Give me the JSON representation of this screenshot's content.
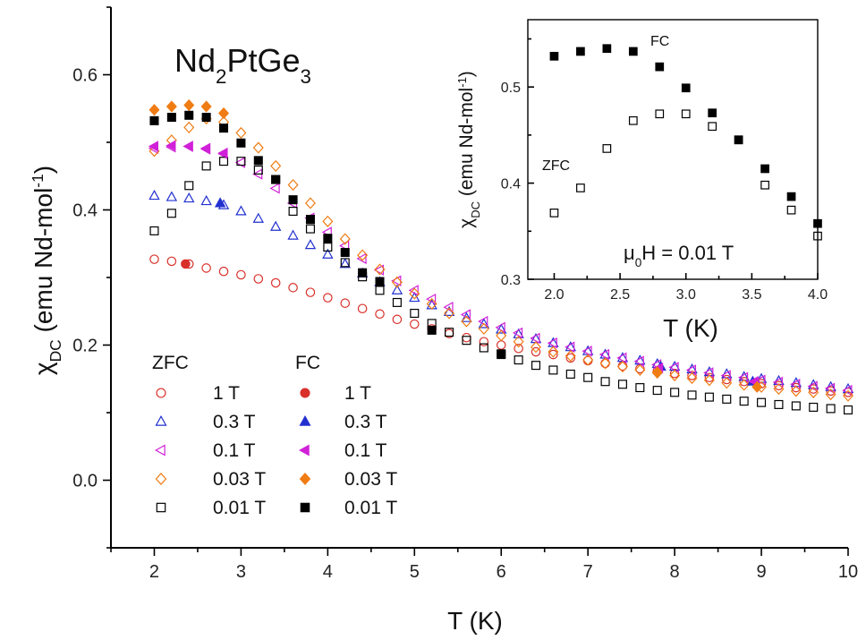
{
  "chart_data": [
    {
      "type": "scatter",
      "title_parts": [
        "Nd",
        "2",
        "PtGe",
        "3"
      ],
      "xlabel": "T (K)",
      "ylabel_parts": [
        "χ",
        "DC",
        " (emu Nd-mol",
        "-1",
        ")"
      ],
      "xlim": [
        1.5,
        10
      ],
      "ylim": [
        -0.1,
        0.7
      ],
      "xticks": [
        "2",
        "3",
        "4",
        "5",
        "6",
        "7",
        "8",
        "9",
        "10"
      ],
      "yticks": [
        "0.0",
        "0.2",
        "0.4",
        "0.6"
      ],
      "legend": {
        "placement": "lower-left",
        "group_titles": [
          "ZFC",
          "FC"
        ],
        "entries": [
          {
            "label": "1 T",
            "color": "#d9302a",
            "marker": "circle"
          },
          {
            "label": "0.3 T",
            "color": "#2230d0",
            "marker": "triangle-up"
          },
          {
            "label": "0.1 T",
            "color": "#d020d8",
            "marker": "triangle-left"
          },
          {
            "label": "0.03 T",
            "color": "#f07c14",
            "marker": "diamond"
          },
          {
            "label": "0.01 T",
            "color": "#000000",
            "marker": "square"
          }
        ]
      },
      "series": [
        {
          "name": "ZFC 1 T",
          "field": "1 T",
          "mode": "ZFC",
          "color": "#d9302a",
          "marker": "circle",
          "filled": false,
          "x": [
            2.0,
            2.2,
            2.4,
            2.6,
            2.8,
            3.0,
            3.2,
            3.4,
            3.6,
            3.8,
            4.0,
            4.2,
            4.4,
            4.6,
            4.8,
            5.0,
            5.2,
            5.4,
            5.6,
            5.8,
            6.0,
            6.2,
            6.4,
            6.6,
            6.8,
            7.0,
            7.2,
            7.4,
            7.6,
            7.8,
            8.0,
            8.2,
            8.4,
            8.6,
            8.8,
            9.0,
            9.2,
            9.4,
            9.6,
            9.8,
            10.0
          ],
          "y": [
            0.327,
            0.324,
            0.32,
            0.314,
            0.309,
            0.304,
            0.298,
            0.292,
            0.285,
            0.278,
            0.27,
            0.262,
            0.254,
            0.246,
            0.238,
            0.231,
            0.224,
            0.217,
            0.211,
            0.205,
            0.2,
            0.195,
            0.19,
            0.186,
            0.181,
            0.177,
            0.173,
            0.169,
            0.165,
            0.162,
            0.158,
            0.155,
            0.152,
            0.149,
            0.146,
            0.143,
            0.14,
            0.137,
            0.135,
            0.132,
            0.13
          ]
        },
        {
          "name": "ZFC 0.3 T",
          "field": "0.3 T",
          "mode": "ZFC",
          "color": "#2230d0",
          "marker": "triangle-up",
          "filled": false,
          "x": [
            2.0,
            2.2,
            2.4,
            2.6,
            2.8,
            3.0,
            3.2,
            3.4,
            3.6,
            3.8,
            4.0,
            4.2,
            4.4,
            4.6,
            4.8,
            5.0,
            5.2,
            5.4,
            5.6,
            5.8,
            6.0,
            6.2,
            6.4,
            6.6,
            6.8,
            7.0,
            7.2,
            7.4,
            7.6,
            7.8,
            8.0,
            8.2,
            8.4,
            8.6,
            8.8,
            9.0,
            9.2,
            9.4,
            9.6,
            9.8,
            10.0
          ],
          "y": [
            0.421,
            0.419,
            0.417,
            0.413,
            0.407,
            0.398,
            0.387,
            0.375,
            0.362,
            0.348,
            0.334,
            0.32,
            0.306,
            0.293,
            0.281,
            0.27,
            0.259,
            0.249,
            0.24,
            0.231,
            0.223,
            0.216,
            0.209,
            0.203,
            0.197,
            0.191,
            0.186,
            0.181,
            0.177,
            0.172,
            0.168,
            0.164,
            0.16,
            0.157,
            0.153,
            0.15,
            0.147,
            0.144,
            0.141,
            0.138,
            0.135
          ]
        },
        {
          "name": "ZFC 0.1 T",
          "field": "0.1 T",
          "mode": "ZFC",
          "color": "#d020d8",
          "marker": "triangle-left",
          "filled": false,
          "x": [
            2.0,
            2.2,
            2.4,
            2.6,
            2.8,
            3.0,
            3.2,
            3.4,
            3.6,
            3.8,
            4.0,
            4.2,
            4.4,
            4.6,
            4.8,
            5.0,
            5.2,
            5.4,
            5.6,
            5.8,
            6.0,
            6.2,
            6.4,
            6.6,
            6.8,
            7.0,
            7.2,
            7.4,
            7.6,
            7.8,
            8.0,
            8.2,
            8.4,
            8.6,
            8.8,
            9.0,
            9.2,
            9.4,
            9.6,
            9.8,
            10.0
          ],
          "y": [
            0.491,
            0.493,
            0.494,
            0.49,
            0.483,
            0.47,
            0.453,
            0.432,
            0.41,
            0.388,
            0.367,
            0.347,
            0.328,
            0.311,
            0.295,
            0.281,
            0.268,
            0.256,
            0.245,
            0.235,
            0.226,
            0.218,
            0.21,
            0.203,
            0.197,
            0.191,
            0.186,
            0.181,
            0.176,
            0.171,
            0.167,
            0.163,
            0.159,
            0.155,
            0.152,
            0.148,
            0.145,
            0.142,
            0.139,
            0.136,
            0.133
          ]
        },
        {
          "name": "ZFC 0.03 T",
          "field": "0.03 T",
          "mode": "ZFC",
          "color": "#f07c14",
          "marker": "diamond",
          "filled": false,
          "x": [
            2.0,
            2.2,
            2.4,
            2.6,
            2.8,
            3.0,
            3.2,
            3.4,
            3.6,
            3.8,
            4.0,
            4.2,
            4.4,
            4.6,
            4.8,
            5.0,
            5.2,
            5.4,
            5.6,
            5.8,
            6.0,
            6.2,
            6.4,
            6.6,
            6.8,
            7.0,
            7.2,
            7.4,
            7.6,
            7.8,
            8.0,
            8.2,
            8.4,
            8.6,
            8.8,
            9.0,
            9.2,
            9.4,
            9.6,
            9.8,
            10.0
          ],
          "y": [
            0.487,
            0.503,
            0.522,
            0.535,
            0.53,
            0.514,
            0.492,
            0.465,
            0.437,
            0.41,
            0.383,
            0.357,
            0.333,
            0.312,
            0.293,
            0.276,
            0.261,
            0.247,
            0.235,
            0.224,
            0.214,
            0.205,
            0.197,
            0.19,
            0.184,
            0.178,
            0.173,
            0.168,
            0.163,
            0.159,
            0.155,
            0.151,
            0.148,
            0.144,
            0.141,
            0.138,
            0.135,
            0.132,
            0.13,
            0.127,
            0.125
          ]
        },
        {
          "name": "ZFC 0.01 T",
          "field": "0.01 T",
          "mode": "ZFC",
          "color": "#000000",
          "marker": "square",
          "filled": false,
          "x": [
            2.0,
            2.2,
            2.4,
            2.6,
            2.8,
            3.0,
            3.2,
            3.4,
            3.6,
            3.8,
            4.0,
            4.2,
            4.4,
            4.6,
            4.8,
            5.0,
            5.2,
            5.4,
            5.6,
            5.8,
            6.0,
            6.2,
            6.4,
            6.6,
            6.8,
            7.0,
            7.2,
            7.4,
            7.6,
            7.8,
            8.0,
            8.2,
            8.4,
            8.6,
            8.8,
            9.0,
            9.2,
            9.4,
            9.6,
            9.8,
            10.0
          ],
          "y": [
            0.369,
            0.395,
            0.436,
            0.465,
            0.472,
            0.472,
            0.459,
            0.445,
            0.398,
            0.372,
            0.345,
            0.322,
            0.301,
            0.281,
            0.263,
            0.247,
            0.232,
            0.219,
            0.207,
            0.196,
            0.186,
            0.178,
            0.17,
            0.163,
            0.157,
            0.152,
            0.146,
            0.142,
            0.137,
            0.133,
            0.13,
            0.126,
            0.123,
            0.12,
            0.117,
            0.115,
            0.112,
            0.11,
            0.108,
            0.106,
            0.104
          ]
        },
        {
          "name": "FC 1 T",
          "field": "1 T",
          "mode": "FC",
          "color": "#d9302a",
          "marker": "circle",
          "filled": true,
          "x": [
            2.36
          ],
          "y": [
            0.32
          ]
        },
        {
          "name": "FC 0.3 T",
          "field": "0.3 T",
          "mode": "FC",
          "color": "#2230d0",
          "marker": "triangle-up",
          "filled": true,
          "x": [
            2.76,
            7.84,
            8.9
          ],
          "y": [
            0.41,
            0.168,
            0.146
          ]
        },
        {
          "name": "FC 0.1 T",
          "field": "0.1 T",
          "mode": "FC",
          "color": "#d020d8",
          "marker": "triangle-left",
          "filled": true,
          "x": [
            2.0,
            2.2,
            2.4,
            2.6,
            2.8,
            7.82,
            8.92
          ],
          "y": [
            0.494,
            0.495,
            0.494,
            0.491,
            0.484,
            0.166,
            0.146
          ]
        },
        {
          "name": "FC 0.03 T",
          "field": "0.03 T",
          "mode": "FC",
          "color": "#f07c14",
          "marker": "diamond",
          "filled": true,
          "x": [
            2.0,
            2.2,
            2.4,
            2.6,
            2.8,
            7.8,
            8.95
          ],
          "y": [
            0.548,
            0.553,
            0.555,
            0.553,
            0.543,
            0.16,
            0.138
          ]
        },
        {
          "name": "FC 0.01 T",
          "field": "0.01 T",
          "mode": "FC",
          "color": "#000000",
          "marker": "square",
          "filled": true,
          "x": [
            2.0,
            2.2,
            2.4,
            2.6,
            2.8,
            3.0,
            3.2,
            3.4,
            3.6,
            3.8,
            4.0,
            4.2,
            4.4,
            4.6,
            5.2,
            6.0
          ],
          "y": [
            0.532,
            0.537,
            0.54,
            0.537,
            0.521,
            0.499,
            0.473,
            0.445,
            0.415,
            0.386,
            0.358,
            0.337,
            0.307,
            0.294,
            0.222,
            0.187
          ]
        }
      ]
    },
    {
      "type": "scatter",
      "xlabel": "T (K)",
      "ylabel_parts": [
        "χ",
        "DC",
        " (emu Nd-mol",
        "-1",
        ")"
      ],
      "xlim": [
        1.8,
        4.0
      ],
      "ylim": [
        0.3,
        0.57
      ],
      "xticks": [
        "2.0",
        "2.5",
        "3.0",
        "3.5",
        "4.0"
      ],
      "yticks": [
        "0.3",
        "0.4",
        "0.5"
      ],
      "annotations": {
        "fc": "FC",
        "zfc": "ZFC",
        "field_parts": [
          "μ",
          "0",
          "H = 0.01 T"
        ]
      },
      "series": [
        {
          "name": "FC",
          "color": "#000000",
          "marker": "square",
          "filled": true,
          "x": [
            2.0,
            2.2,
            2.4,
            2.6,
            2.8,
            3.0,
            3.2,
            3.4,
            3.6,
            3.8,
            4.0
          ],
          "y": [
            0.532,
            0.537,
            0.54,
            0.537,
            0.521,
            0.499,
            0.473,
            0.445,
            0.415,
            0.386,
            0.358
          ]
        },
        {
          "name": "ZFC",
          "color": "#000000",
          "marker": "square",
          "filled": false,
          "x": [
            2.0,
            2.2,
            2.4,
            2.6,
            2.8,
            3.0,
            3.2,
            3.4,
            3.6,
            3.8,
            4.0
          ],
          "y": [
            0.369,
            0.395,
            0.436,
            0.465,
            0.472,
            0.472,
            0.459,
            0.445,
            0.398,
            0.372,
            0.345
          ]
        }
      ]
    }
  ]
}
